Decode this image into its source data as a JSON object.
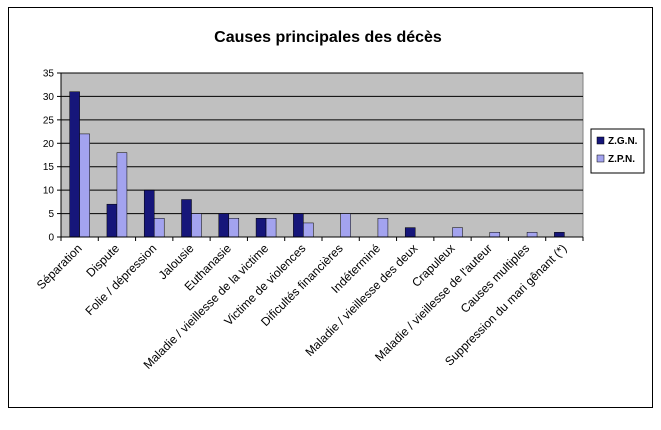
{
  "chart_data": {
    "type": "bar",
    "title": "Causes principales des décès",
    "xlabel": "",
    "ylabel": "",
    "ylim": [
      0,
      35
    ],
    "yticks": [
      0,
      5,
      10,
      15,
      20,
      25,
      30,
      35
    ],
    "grid": true,
    "legend_position": "right",
    "categories": [
      "Séparation",
      "Dispute",
      "Folie / dépression",
      "Jalousie",
      "Euthanasie",
      "Maladie / vieillesse de la victime",
      "Victime de violences",
      "Dificultés financières",
      "Indéterminé",
      "Maladie / vieillesse des deux",
      "Crapuleux",
      "Maladie / vieillesse de l'auteur",
      "Causes multiples",
      "Suppression du mari gênant (*)"
    ],
    "series": [
      {
        "name": "Z.G.N.",
        "color": "#16167a",
        "values": [
          31,
          7,
          10,
          8,
          5,
          4,
          5,
          0,
          0,
          2,
          0,
          0,
          0,
          1
        ]
      },
      {
        "name": "Z.P.N.",
        "color": "#a3a3ef",
        "values": [
          22,
          18,
          4,
          5,
          4,
          4,
          3,
          5,
          4,
          0,
          2,
          1,
          1,
          0
        ]
      }
    ],
    "colors": {
      "plot_background": "#c0c0c0",
      "gridline": "#000000"
    }
  }
}
